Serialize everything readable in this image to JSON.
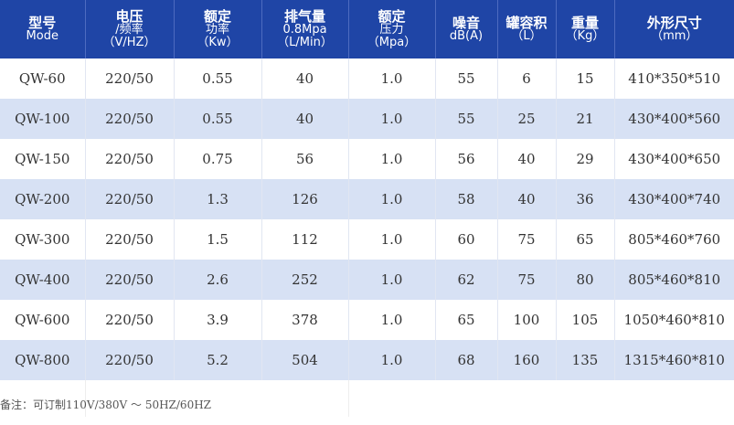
{
  "table": {
    "headers": [
      {
        "key": "model",
        "lines": [
          "型号",
          "Mode"
        ]
      },
      {
        "key": "voltage",
        "lines": [
          "电压",
          "/频率",
          "（V/HZ）"
        ]
      },
      {
        "key": "power",
        "lines": [
          "额定",
          "功率",
          "（Kw）"
        ]
      },
      {
        "key": "flow",
        "lines": [
          "排气量",
          "0.8Mpa",
          "（L/Min）"
        ]
      },
      {
        "key": "pressure",
        "lines": [
          "额定",
          "压力",
          "（Mpa）"
        ]
      },
      {
        "key": "noise",
        "lines": [
          "噪音",
          "dB(A)"
        ]
      },
      {
        "key": "tank",
        "lines": [
          "罐容积",
          "（L）"
        ]
      },
      {
        "key": "weight",
        "lines": [
          "重量",
          "（Kg）"
        ]
      },
      {
        "key": "dimensions",
        "lines": [
          "外形尺寸",
          "（mm）"
        ]
      }
    ],
    "rows": [
      [
        "QW-60",
        "220/50",
        "0.55",
        "40",
        "1.0",
        "55",
        "6",
        "15",
        "410*350*510"
      ],
      [
        "QW-100",
        "220/50",
        "0.55",
        "40",
        "1.0",
        "55",
        "25",
        "21",
        "430*400*560"
      ],
      [
        "QW-150",
        "220/50",
        "0.75",
        "56",
        "1.0",
        "56",
        "40",
        "29",
        "430*400*650"
      ],
      [
        "QW-200",
        "220/50",
        "1.3",
        "126",
        "1.0",
        "58",
        "40",
        "36",
        "430*400*740"
      ],
      [
        "QW-300",
        "220/50",
        "1.5",
        "112",
        "1.0",
        "60",
        "75",
        "65",
        "805*460*760"
      ],
      [
        "QW-400",
        "220/50",
        "2.6",
        "252",
        "1.0",
        "62",
        "75",
        "80",
        "805*460*810"
      ],
      [
        "QW-600",
        "220/50",
        "3.9",
        "378",
        "1.0",
        "65",
        "100",
        "105",
        "1050*460*810"
      ],
      [
        "QW-800",
        "220/50",
        "5.2",
        "504",
        "1.0",
        "68",
        "160",
        "135",
        "1315*460*810"
      ]
    ]
  },
  "note": "备注：可订制110V/380V ～ 50HZ/60HZ",
  "colors": {
    "header_bg": "#1f45a6",
    "row_alt_bg": "#d7e1f4"
  }
}
